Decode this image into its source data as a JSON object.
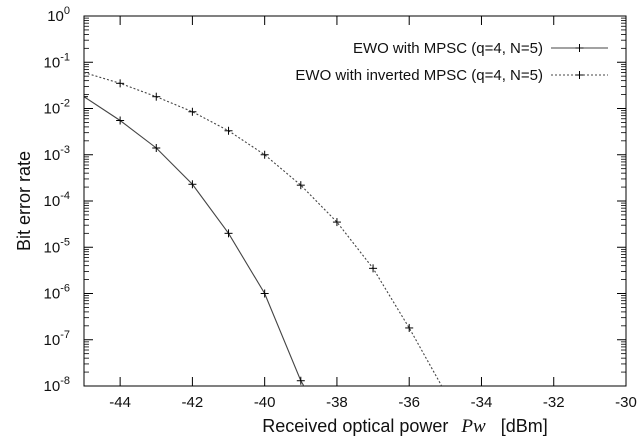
{
  "chart_data": {
    "type": "line",
    "xlabel_prefix": "Received optical power",
    "xlabel_symbol": "Pw",
    "xlabel_unit": "[dBm]",
    "ylabel": "Bit error rate",
    "xlim": [
      -45,
      -30
    ],
    "ylim": [
      1e-08,
      1
    ],
    "yscale": "log",
    "grid": false,
    "legend_position": "top-right",
    "x_ticks": [
      -44,
      -42,
      -40,
      -38,
      -36,
      -34,
      -32,
      -30
    ],
    "x_tick_labels": [
      "-44",
      "-42",
      "-40",
      "-38",
      "-36",
      "-34",
      "-32",
      "-30"
    ],
    "y_ticks": [
      {
        "value": 1,
        "base": "10",
        "exp": "0"
      },
      {
        "value": 0.1,
        "base": "10",
        "exp": "-1"
      },
      {
        "value": 0.01,
        "base": "10",
        "exp": "-2"
      },
      {
        "value": 0.001,
        "base": "10",
        "exp": "-3"
      },
      {
        "value": 0.0001,
        "base": "10",
        "exp": "-4"
      },
      {
        "value": 1e-05,
        "base": "10",
        "exp": "-5"
      },
      {
        "value": 1e-06,
        "base": "10",
        "exp": "-6"
      },
      {
        "value": 1e-07,
        "base": "10",
        "exp": "-7"
      },
      {
        "value": 1e-08,
        "base": "10",
        "exp": "-8"
      }
    ],
    "series": [
      {
        "name": "EWO with MPSC (q=4, N=5)",
        "style": "solid",
        "color": "#444444",
        "x": [
          -45,
          -44,
          -43,
          -42,
          -41,
          -40,
          -39,
          -38.75
        ],
        "y": [
          0.018,
          0.0055,
          0.0014,
          0.00023,
          2e-05,
          1e-06,
          1.3e-08,
          6e-09
        ],
        "marker_x": [
          -45,
          -44,
          -43,
          -42,
          -41,
          -40,
          -39
        ]
      },
      {
        "name": "EWO with inverted MPSC (q=4, N=5)",
        "style": "dotted",
        "color": "#444444",
        "x": [
          -45,
          -44,
          -43,
          -42,
          -41,
          -40,
          -39,
          -38,
          -37,
          -36,
          -35.1
        ],
        "y": [
          0.06,
          0.035,
          0.018,
          0.0085,
          0.0033,
          0.001,
          0.00022,
          3.5e-05,
          3.5e-06,
          1.8e-07,
          1e-08
        ],
        "marker_x": [
          -44,
          -43,
          -42,
          -41,
          -40,
          -39,
          -38,
          -37,
          -36
        ]
      }
    ]
  }
}
